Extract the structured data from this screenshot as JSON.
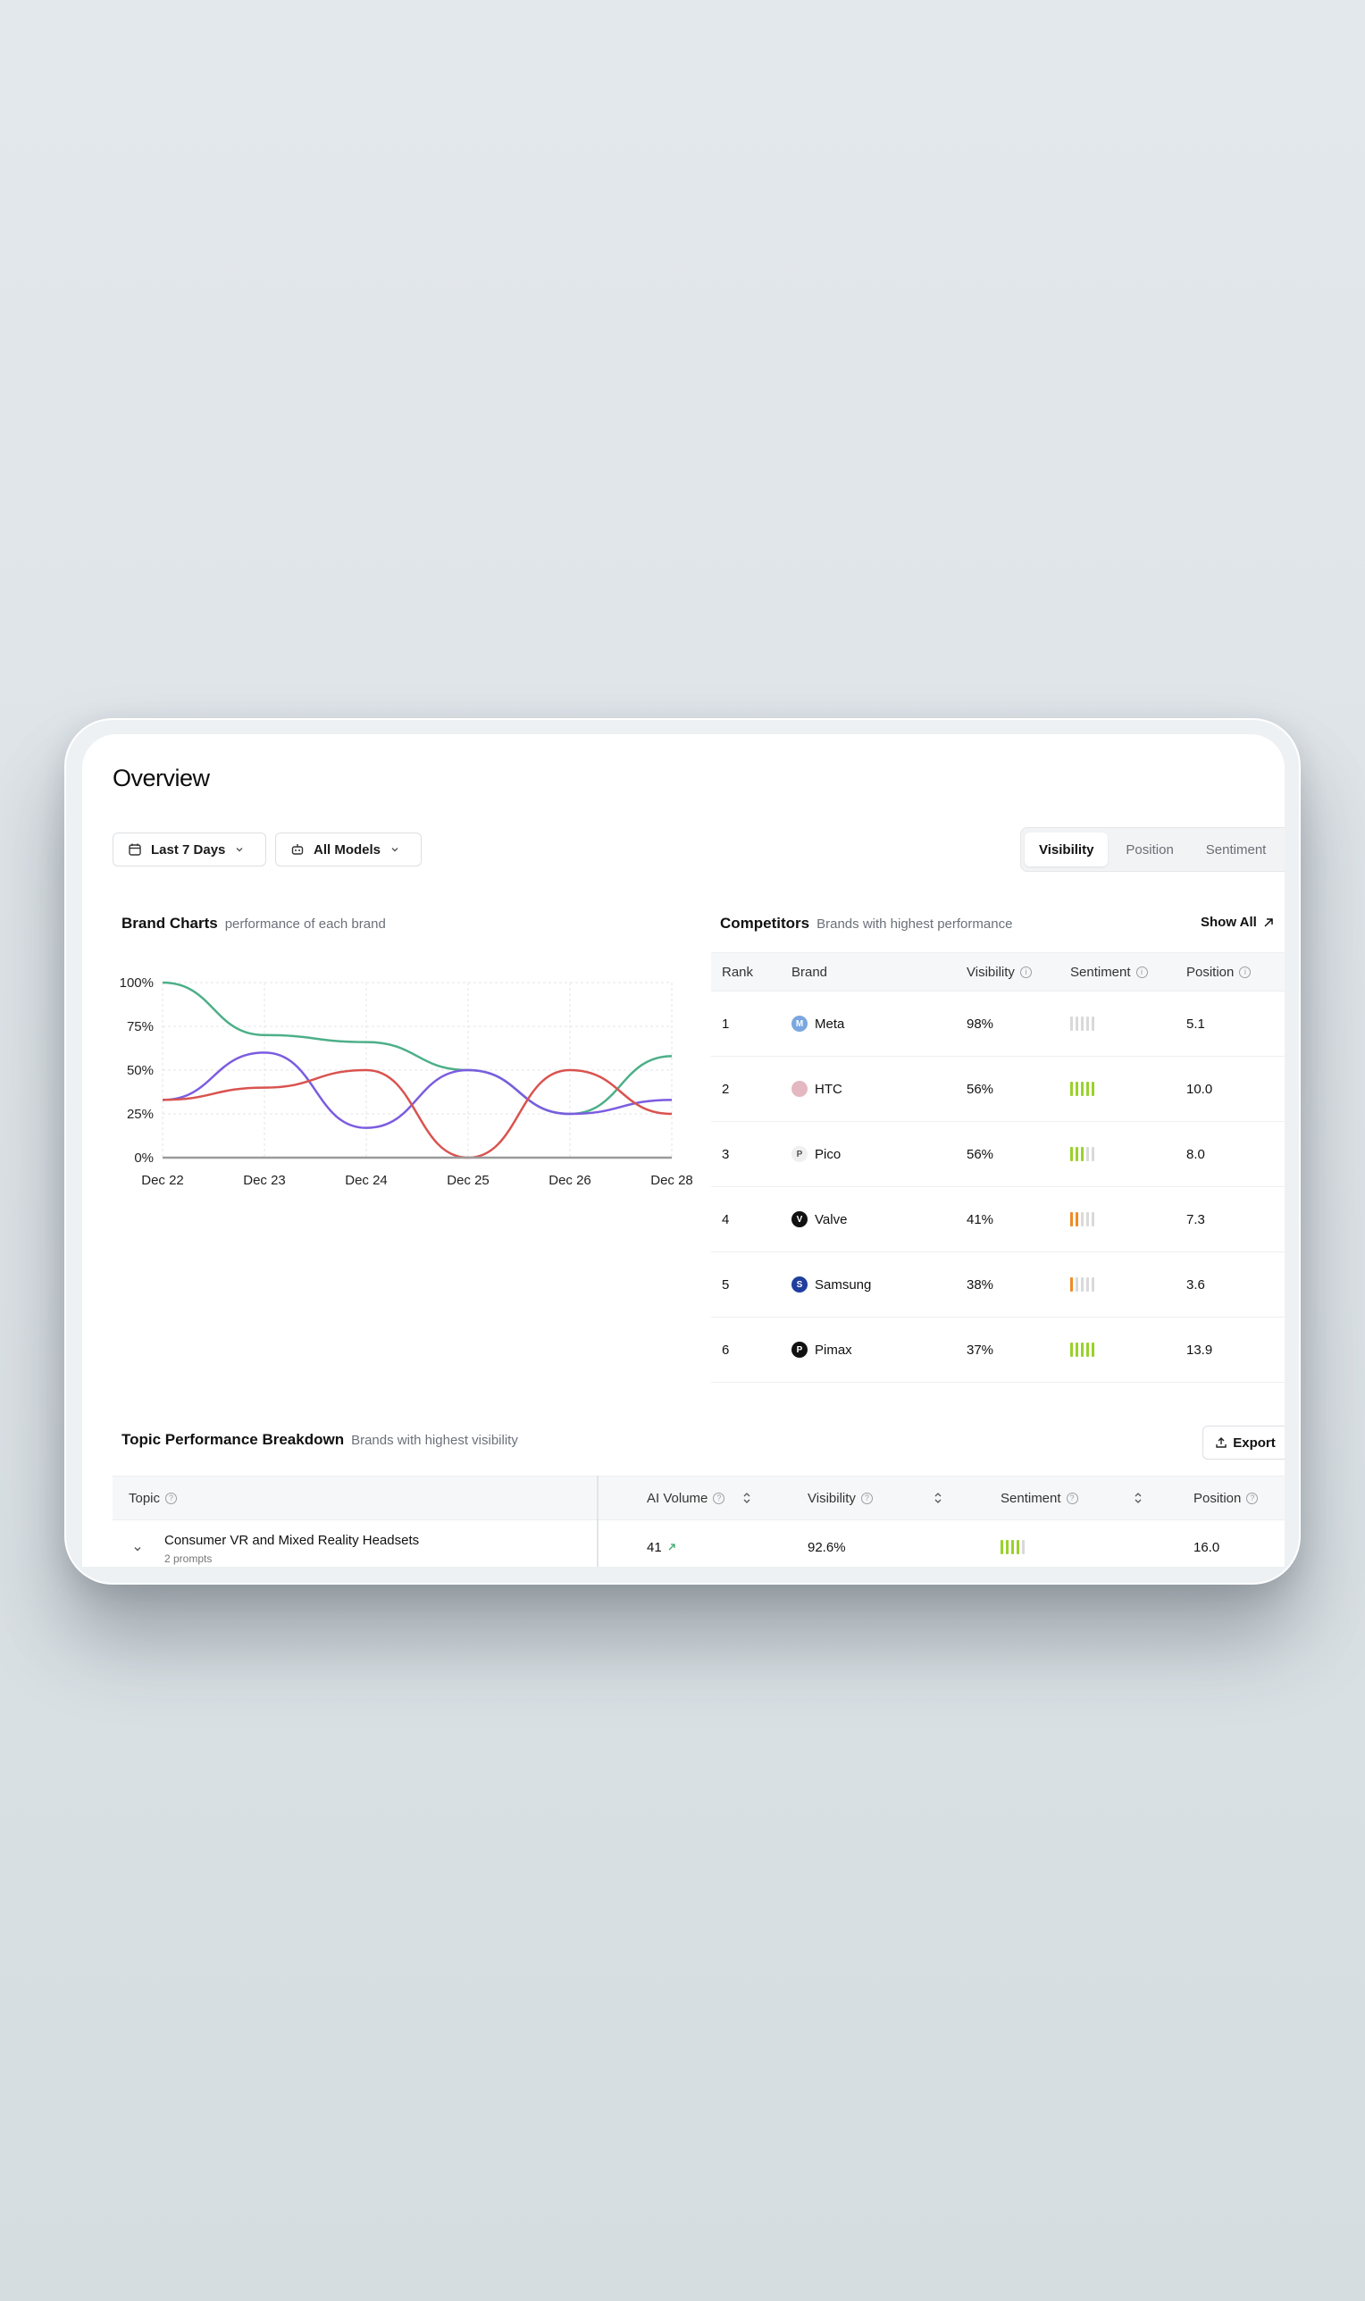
{
  "page": {
    "title": "Overview"
  },
  "filters": {
    "date_range": "Last 7 Days",
    "models": "All Models"
  },
  "metric_tabs": [
    {
      "label": "Visibility",
      "active": true
    },
    {
      "label": "Position",
      "active": false
    },
    {
      "label": "Sentiment",
      "active": false
    }
  ],
  "brand_charts": {
    "title": "Brand Charts",
    "subtitle": "performance of each brand"
  },
  "chart_data": {
    "type": "line",
    "title": "",
    "xlabel": "",
    "ylabel": "",
    "categories": [
      "Dec 22",
      "Dec 23",
      "Dec 24",
      "Dec 25",
      "Dec 26",
      "Dec 28"
    ],
    "y_ticks": [
      "0%",
      "25%",
      "50%",
      "75%",
      "100%"
    ],
    "ylim": [
      0,
      100
    ],
    "grid": true,
    "series": [
      {
        "color": "#4caf88",
        "values": [
          100,
          70,
          66,
          50,
          25,
          58
        ]
      },
      {
        "color": "#7b5ce0",
        "values": [
          33,
          60,
          17,
          50,
          25,
          33
        ]
      },
      {
        "color": "#d9534f",
        "values": [
          33,
          40,
          50,
          0,
          50,
          25
        ]
      },
      {
        "color": "#9a9a9a",
        "values": [
          0,
          0,
          0,
          0,
          0,
          0
        ]
      }
    ]
  },
  "competitors": {
    "title": "Competitors",
    "subtitle": "Brands with highest performance",
    "show_all": "Show All",
    "headers": {
      "rank": "Rank",
      "brand": "Brand",
      "visibility": "Visibility",
      "sentiment": "Sentiment",
      "position": "Position"
    },
    "rows": [
      {
        "rank": "1",
        "brand": "Meta",
        "visibility": "98%",
        "position": "5.1",
        "sentiment_level": 0,
        "sentiment_color": "#d9d9d9",
        "logo_color": "#7aa7e0",
        "logo_text": "M"
      },
      {
        "rank": "2",
        "brand": "HTC",
        "visibility": "56%",
        "position": "10.0",
        "sentiment_level": 5,
        "sentiment_color": "#9ad12b",
        "logo_color": "#e3b8c0",
        "logo_text": ""
      },
      {
        "rank": "3",
        "brand": "Pico",
        "visibility": "56%",
        "position": "8.0",
        "sentiment_level": 3,
        "sentiment_color": "#9ad12b",
        "logo_color": "#f0f0f0",
        "logo_text": "P"
      },
      {
        "rank": "4",
        "brand": "Valve",
        "visibility": "41%",
        "position": "7.3",
        "sentiment_level": 2,
        "sentiment_color": "#f08a24",
        "logo_color": "#111111",
        "logo_text": "V"
      },
      {
        "rank": "5",
        "brand": "Samsung",
        "visibility": "38%",
        "position": "3.6",
        "sentiment_level": 1,
        "sentiment_color": "#f08a24",
        "logo_color": "#1f3fa0",
        "logo_text": "S"
      },
      {
        "rank": "6",
        "brand": "Pimax",
        "visibility": "37%",
        "position": "13.9",
        "sentiment_level": 5,
        "sentiment_color": "#9ad12b",
        "logo_color": "#111111",
        "logo_text": "P"
      }
    ]
  },
  "topic_breakdown": {
    "title": "Topic Performance Breakdown",
    "subtitle": "Brands with highest visibility",
    "export": "Export",
    "headers": {
      "topic": "Topic",
      "ai_volume": "AI Volume",
      "visibility": "Visibility",
      "sentiment": "Sentiment",
      "position": "Position"
    },
    "rows": [
      {
        "topic": "Consumer VR and Mixed Reality Headsets",
        "prompts": "2 prompts",
        "ai_volume": "41",
        "visibility": "92.6%",
        "sentiment_level": 4,
        "sentiment_color": "#9ad12b",
        "position": "16.0"
      }
    ]
  }
}
